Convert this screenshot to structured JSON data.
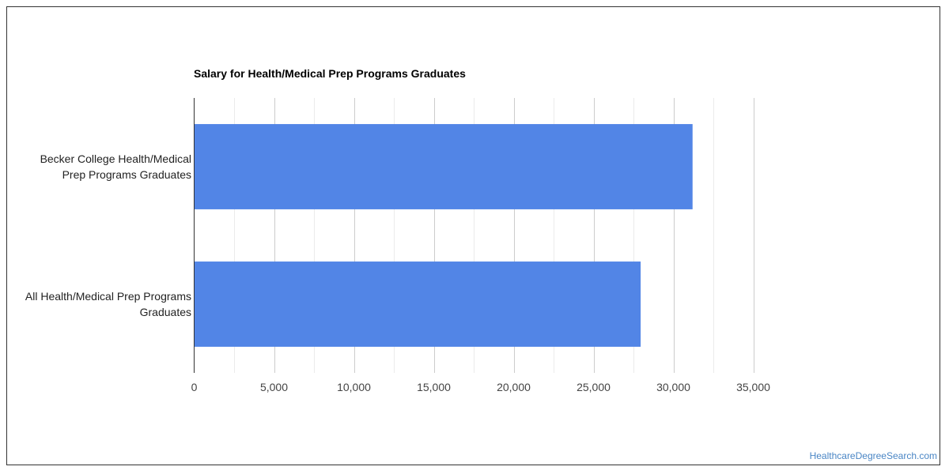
{
  "chart_data": {
    "type": "bar",
    "orientation": "horizontal",
    "title": "Salary for Health/Medical Prep Programs Graduates",
    "categories": [
      [
        "Becker College Health/Medical",
        "Prep Programs Graduates"
      ],
      [
        "All Health/Medical Prep Programs",
        "Graduates"
      ]
    ],
    "values": [
      31200,
      27950
    ],
    "xlim": [
      0,
      35000
    ],
    "xticks": [
      0,
      5000,
      10000,
      15000,
      20000,
      25000,
      30000,
      35000
    ],
    "xtick_labels": [
      "0",
      "5,000",
      "10,000",
      "15,000",
      "20,000",
      "25,000",
      "30,000",
      "35,000"
    ],
    "xlabel": "",
    "ylabel": "",
    "grid": true,
    "legend": "none",
    "bar_color": "#5285e6"
  },
  "watermark": "HealthcareDegreeSearch.com"
}
